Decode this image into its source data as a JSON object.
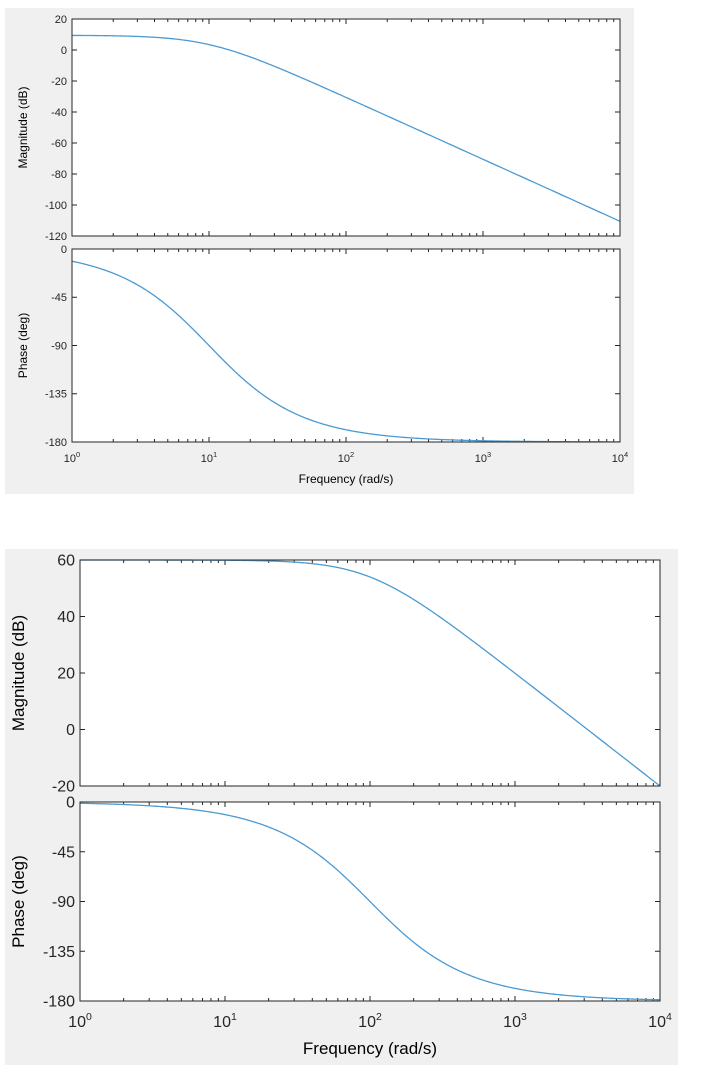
{
  "chart_data": [
    {
      "type": "line",
      "panels": [
        {
          "ylabel": "Magnitude (dB)",
          "ylim": [
            -120,
            20
          ],
          "yticks": [
            "20",
            "0",
            "-20",
            "-40",
            "-60",
            "-80",
            "-100",
            "-120"
          ],
          "yticks_values": [
            20,
            0,
            -20,
            -40,
            -60,
            -80,
            -100,
            -120
          ],
          "curve": {
            "kind": "mag",
            "gain_db": 9.5,
            "poles": [
              10,
              10
            ]
          }
        },
        {
          "ylabel": "Phase (deg)",
          "ylim": [
            -180,
            0
          ],
          "yticks": [
            "0",
            "-45",
            "-90",
            "-135",
            "-180"
          ],
          "yticks_values": [
            0,
            -45,
            -90,
            -135,
            -180
          ],
          "curve": {
            "kind": "phase",
            "poles": [
              10,
              10
            ]
          }
        }
      ],
      "xlabel": "Frequency  (rad/s)",
      "xscale": "log",
      "xlim": [
        1,
        10000
      ],
      "xticks": [
        "10",
        "10",
        "10",
        "10",
        "10"
      ],
      "xtick_exponents": [
        "0",
        "1",
        "2",
        "3",
        "4"
      ],
      "line_color": "#4b9ad3"
    },
    {
      "type": "line",
      "panels": [
        {
          "ylabel": "Magnitude (dB)",
          "ylim": [
            -20,
            60
          ],
          "yticks": [
            "60",
            "40",
            "20",
            "0",
            "-20"
          ],
          "yticks_values": [
            60,
            40,
            20,
            0,
            -20
          ],
          "curve": {
            "kind": "mag",
            "gain_db": 60,
            "poles": [
              100,
              100
            ]
          }
        },
        {
          "ylabel": "Phase (deg)",
          "ylim": [
            -180,
            0
          ],
          "yticks": [
            "0",
            "-45",
            "-90",
            "-135",
            "-180"
          ],
          "yticks_values": [
            0,
            -45,
            -90,
            -135,
            -180
          ],
          "curve": {
            "kind": "phase",
            "poles": [
              100,
              100
            ]
          }
        }
      ],
      "xlabel": "Frequency  (rad/s)",
      "xscale": "log",
      "xlim": [
        1,
        10000
      ],
      "xticks": [
        "10",
        "10",
        "10",
        "10",
        "10"
      ],
      "xtick_exponents": [
        "0",
        "1",
        "2",
        "3",
        "4"
      ],
      "line_color": "#4b9ad3"
    }
  ]
}
